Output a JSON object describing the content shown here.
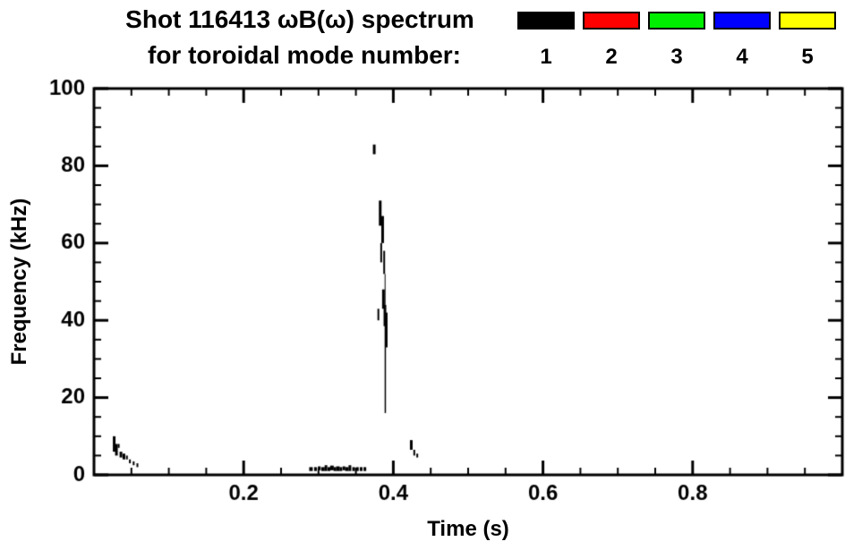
{
  "chart_data": {
    "type": "scatter",
    "title_line1": "Shot 116413 ωB(ω) spectrum",
    "title_line2": "for toroidal mode number:",
    "xlabel": "Time (s)",
    "ylabel": "Frequency (kHz)",
    "xlim": [
      0.0,
      1.0
    ],
    "ylim": [
      0,
      100
    ],
    "xtick_values": [
      0.2,
      0.4,
      0.6,
      0.8
    ],
    "xtick_labels": [
      "0.2",
      "0.4",
      "0.6",
      "0.8"
    ],
    "x_minor_step": 0.05,
    "ytick_values": [
      0,
      20,
      40,
      60,
      80,
      100
    ],
    "ytick_labels": [
      "0",
      "20",
      "40",
      "60",
      "80",
      "100"
    ],
    "y_minor_step": 5,
    "grid": false,
    "frame_color": "#000000",
    "legend": {
      "position": "top-right",
      "entries": [
        {
          "label": "1",
          "color": "#000000"
        },
        {
          "label": "2",
          "color": "#ff0000"
        },
        {
          "label": "3",
          "color": "#00ee00"
        },
        {
          "label": "4",
          "color": "#0000ff"
        },
        {
          "label": "5",
          "color": "#ffff00"
        }
      ]
    },
    "series": [
      {
        "name": "toroidal mode n=1",
        "color": "#000000",
        "segment_format": [
          "time_s",
          "freq_low_kHz",
          "freq_high_kHz",
          "mark_width_px"
        ],
        "segments": [
          [
            0.027,
            6,
            10,
            3
          ],
          [
            0.03,
            5,
            8,
            3
          ],
          [
            0.033,
            7,
            8,
            2
          ],
          [
            0.036,
            4.5,
            6,
            3
          ],
          [
            0.04,
            4,
            5.5,
            3
          ],
          [
            0.044,
            4,
            5,
            2
          ],
          [
            0.048,
            3,
            4,
            2
          ],
          [
            0.053,
            2.5,
            3.5,
            2
          ],
          [
            0.058,
            2,
            3,
            2
          ],
          [
            0.29,
            1,
            2,
            4
          ],
          [
            0.296,
            1,
            2,
            3
          ],
          [
            0.301,
            1.2,
            2.2,
            3
          ],
          [
            0.306,
            1,
            2,
            4
          ],
          [
            0.31,
            1,
            2.5,
            3
          ],
          [
            0.314,
            1,
            2,
            3
          ],
          [
            0.318,
            1.2,
            2.4,
            4
          ],
          [
            0.322,
            1,
            2,
            3
          ],
          [
            0.326,
            1,
            2.2,
            4
          ],
          [
            0.33,
            1,
            2,
            3
          ],
          [
            0.334,
            1.2,
            2.2,
            3
          ],
          [
            0.338,
            1,
            2,
            4
          ],
          [
            0.342,
            1,
            2.5,
            3
          ],
          [
            0.347,
            1,
            2,
            3
          ],
          [
            0.352,
            1,
            2,
            3
          ],
          [
            0.357,
            1,
            2,
            3
          ],
          [
            0.362,
            1,
            2,
            3
          ],
          [
            0.3745,
            83,
            85.5,
            3
          ],
          [
            0.3825,
            64.5,
            71,
            3
          ],
          [
            0.3857,
            60,
            67,
            3
          ],
          [
            0.3838,
            55,
            60,
            2
          ],
          [
            0.3878,
            52,
            58,
            2
          ],
          [
            0.38,
            40,
            43,
            2
          ],
          [
            0.3868,
            43,
            48,
            3
          ],
          [
            0.3888,
            38.5,
            44,
            3
          ],
          [
            0.3905,
            33,
            42,
            3
          ],
          [
            0.389,
            35,
            52,
            1
          ],
          [
            0.3893,
            16,
            35,
            1.5
          ],
          [
            0.424,
            6.5,
            9,
            3
          ],
          [
            0.428,
            5,
            6.5,
            2
          ],
          [
            0.432,
            4.5,
            5.5,
            2
          ]
        ]
      }
    ]
  }
}
